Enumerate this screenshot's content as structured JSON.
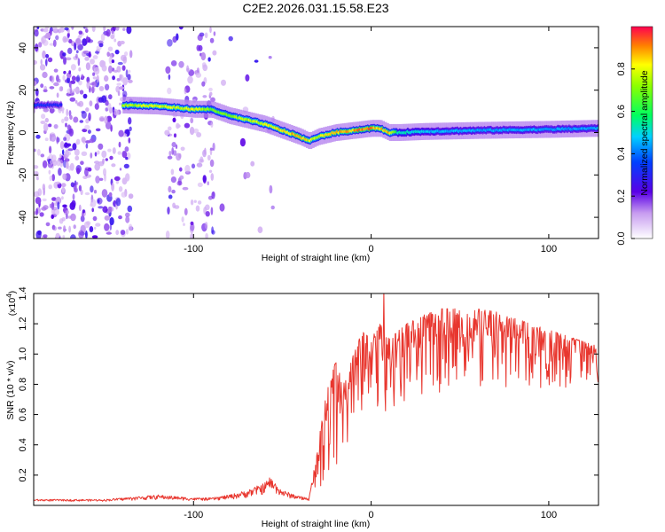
{
  "figure_title": "C2E2.2026.031.15.58.E23",
  "chart_data": [
    {
      "type": "heatmap",
      "title": "C2E2.2026.031.15.58.E23",
      "xlabel": "Height of straight line (km)",
      "ylabel": "Frequency (Hz)",
      "xlim": [
        -190,
        128
      ],
      "ylim": [
        -50,
        50
      ],
      "xticks": [
        -100,
        0,
        100
      ],
      "xtick_labels": [
        "-100",
        "0",
        "100"
      ],
      "yticks": [
        -40,
        -20,
        0,
        20,
        40
      ],
      "ytick_labels": [
        "-40",
        "-20",
        "0",
        "20",
        "40"
      ],
      "colorbar": {
        "label": "Normalized spectral amplitude",
        "range": [
          0.0,
          1.0
        ],
        "ticks": [
          0.0,
          0.2,
          0.4,
          0.6,
          0.8
        ],
        "tick_labels": [
          "0.0",
          "0.2",
          "0.4",
          "0.6",
          "0.8"
        ]
      },
      "noise_regions": [
        {
          "x_range": [
            -190,
            -135
          ],
          "density": 1.0
        },
        {
          "x_range": [
            -115,
            -88
          ],
          "density": 0.5
        },
        {
          "x_range": [
            -90,
            -55
          ],
          "density": 0.06
        }
      ],
      "ridge": {
        "x": [
          -190,
          -174,
          -140,
          -120,
          -100,
          -90,
          -80,
          -70,
          -60,
          -50,
          -40,
          -35,
          -30,
          -20,
          -10,
          0,
          5,
          10,
          15,
          30,
          60,
          100,
          128
        ],
        "freq_hz": [
          13,
          13,
          13,
          12.5,
          11,
          11,
          8,
          6,
          4,
          1,
          -2,
          -4,
          -2,
          0,
          1,
          2,
          2,
          0,
          0,
          0.5,
          1,
          1.5,
          2
        ],
        "amplitude": [
          0.35,
          0.3,
          0.75,
          0.8,
          0.8,
          0.7,
          0.72,
          0.78,
          0.8,
          0.85,
          0.9,
          0.8,
          0.8,
          0.9,
          0.9,
          0.95,
          0.85,
          0.9,
          0.55,
          0.48,
          0.45,
          0.45,
          0.45
        ]
      }
    },
    {
      "type": "line",
      "xlabel": "Height of straight line (km)",
      "ylabel": "SNR (10 * v/v)",
      "y_multiplier": "(x10",
      "y_multiplier_exp": "4",
      "y_multiplier_close": ")",
      "xlim": [
        -190,
        128
      ],
      "ylim": [
        0,
        1.4
      ],
      "xticks": [
        -100,
        0,
        100
      ],
      "xtick_labels": [
        "-100",
        "0",
        "100"
      ],
      "yticks": [
        0.2,
        0.4,
        0.6,
        0.8,
        1.0,
        1.2,
        1.4
      ],
      "ytick_labels": [
        "0.2",
        "0.4",
        "0.6",
        "0.8",
        "1.0",
        "1.2",
        "1.4"
      ],
      "series": [
        {
          "name": "SNR",
          "color": "#e8362e",
          "envelope_x": [
            -190,
            -150,
            -130,
            -120,
            -110,
            -100,
            -90,
            -80,
            -70,
            -60,
            -57,
            -50,
            -40,
            -35,
            -30,
            -25,
            -20,
            -15,
            -10,
            -5,
            0,
            5,
            10,
            15,
            20,
            30,
            40,
            50,
            60,
            70,
            80,
            90,
            100,
            110,
            120,
            128
          ],
          "envelope_upper": [
            0.04,
            0.04,
            0.06,
            0.07,
            0.06,
            0.05,
            0.05,
            0.07,
            0.1,
            0.15,
            0.19,
            0.1,
            0.06,
            0.05,
            0.4,
            0.75,
            0.95,
            0.8,
            1.0,
            1.15,
            1.1,
            1.2,
            1.1,
            1.15,
            1.2,
            1.26,
            1.3,
            1.3,
            1.3,
            1.28,
            1.24,
            1.2,
            1.16,
            1.12,
            1.08,
            1.05
          ],
          "envelope_lower": [
            0.02,
            0.02,
            0.02,
            0.02,
            0.02,
            0.02,
            0.02,
            0.02,
            0.02,
            0.03,
            0.04,
            0.03,
            0.02,
            0.02,
            0.03,
            0.15,
            0.25,
            0.35,
            0.4,
            0.45,
            0.5,
            0.55,
            0.6,
            0.65,
            0.7,
            0.72,
            0.74,
            0.76,
            0.75,
            0.74,
            0.72,
            0.72,
            0.74,
            0.78,
            0.8,
            0.8
          ],
          "peak": {
            "x": 7,
            "y": 1.42
          }
        }
      ]
    }
  ]
}
